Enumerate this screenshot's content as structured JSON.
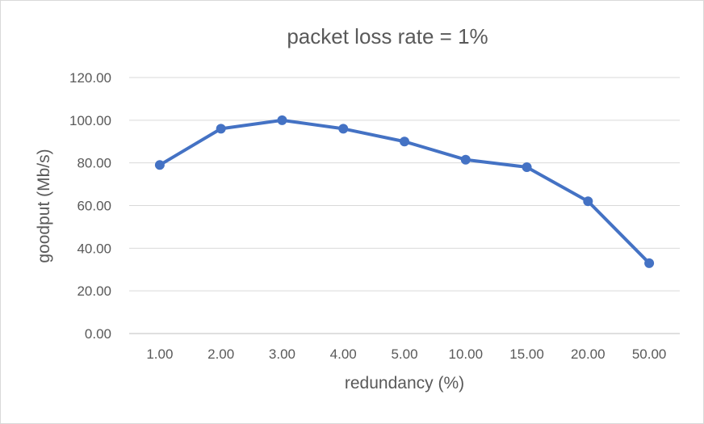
{
  "chart_data": {
    "type": "line",
    "title": "packet loss rate = 1%",
    "xlabel": "redundancy (%)",
    "ylabel": "goodput (Mb/s)",
    "categories": [
      "1.00",
      "2.00",
      "3.00",
      "4.00",
      "5.00",
      "10.00",
      "15.00",
      "20.00",
      "50.00"
    ],
    "y_ticks": [
      "0.00",
      "20.00",
      "40.00",
      "60.00",
      "80.00",
      "100.00",
      "120.00"
    ],
    "ylim": [
      0,
      120
    ],
    "grid": true,
    "legend": "none",
    "series": [
      {
        "color": "#4472c4",
        "values": [
          79.0,
          96.0,
          100.0,
          96.0,
          90.0,
          81.5,
          78.0,
          62.0,
          33.0
        ]
      }
    ]
  }
}
